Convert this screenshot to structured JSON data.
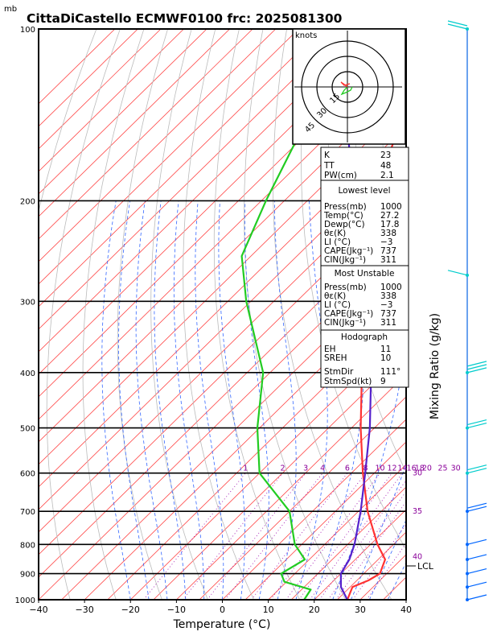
{
  "title": "CittaDiCastello ECMWF0100 frc: 2025081300",
  "pressure_unit": "mb",
  "xlabel": "Temperature (°C)",
  "right_axis_label": "Mixing Ratio (g/kg)",
  "lcl_label": "LCL",
  "hodograph": {
    "unit_label": "knots",
    "ring_labels": [
      "15",
      "30",
      "45"
    ]
  },
  "colors": {
    "temperature": "#ff3333",
    "dewpoint": "#22cc22",
    "parcel": "#5522cc",
    "isotherm": "#ff4444",
    "dry_adiabat": "#bbbbbb",
    "moist_adiabat": "#3366ff",
    "mixing_ratio": "#9900aa",
    "wind_barb_upper": "#00cccc",
    "wind_barb_lower": "#0066ff"
  },
  "indices": {
    "general": [
      {
        "name": "K",
        "value": "23"
      },
      {
        "name": "TT",
        "value": "48"
      },
      {
        "name": "PW(cm)",
        "value": "2.1"
      }
    ],
    "lowest_level": {
      "header": "Lowest level",
      "rows": [
        {
          "name": "Press(mb)",
          "value": "1000"
        },
        {
          "name": "Temp(°C)",
          "value": "27.2"
        },
        {
          "name": "Dewp(°C)",
          "value": "17.8"
        },
        {
          "name": "θε(K)",
          "value": "338"
        },
        {
          "name": "LI (°C)",
          "value": "−3"
        },
        {
          "name": "CAPE(Jkg⁻¹)",
          "value": "737"
        },
        {
          "name": "CIN(Jkg⁻¹)",
          "value": "311"
        }
      ]
    },
    "most_unstable": {
      "header": "Most Unstable",
      "rows": [
        {
          "name": "Press(mb)",
          "value": "1000"
        },
        {
          "name": "θε(K)",
          "value": "338"
        },
        {
          "name": "LI (°C)",
          "value": "−3"
        },
        {
          "name": "CAPE(Jkg⁻¹)",
          "value": "737"
        },
        {
          "name": "CIN(Jkg⁻¹)",
          "value": "311"
        }
      ]
    },
    "hodograph": {
      "header": "Hodograph",
      "rows": [
        {
          "name": "EH",
          "value": "11"
        },
        {
          "name": "SREH",
          "value": "10"
        },
        {
          "name": "StmDir",
          "value": "111°"
        },
        {
          "name": "StmSpd(kt)",
          "value": "9"
        }
      ]
    }
  },
  "chart_data": {
    "type": "line",
    "title": "CittaDiCastello ECMWF0100 frc: 2025081300",
    "xlabel": "Temperature (°C)",
    "ylabel": "mb",
    "y_scale": "log (skew-T)",
    "xlim": [
      -40,
      40
    ],
    "ylim": [
      1000,
      100
    ],
    "x_ticks": [
      "−40",
      "−30",
      "−20",
      "−10",
      "0",
      "10",
      "20",
      "30",
      "40"
    ],
    "pressure_levels": [
      "100",
      "200",
      "300",
      "400",
      "500",
      "600",
      "700",
      "800",
      "900",
      "1000"
    ],
    "mixing_ratio_labels": [
      "1",
      "2",
      "3",
      "4",
      "6",
      "8",
      "10",
      "12",
      "14",
      "16",
      "18",
      "20",
      "25",
      "30"
    ],
    "wet_bulb_labels": [
      "30",
      "35",
      "40"
    ],
    "series": [
      {
        "name": "temperature",
        "points": [
          {
            "p": 1000,
            "t": 27.2
          },
          {
            "p": 950,
            "t": 25.5
          },
          {
            "p": 925,
            "t": 27.5
          },
          {
            "p": 900,
            "t": 28.5
          },
          {
            "p": 850,
            "t": 26.5
          },
          {
            "p": 800,
            "t": 21.5
          },
          {
            "p": 700,
            "t": 12.0
          },
          {
            "p": 600,
            "t": 2.5
          },
          {
            "p": 500,
            "t": -8.0
          },
          {
            "p": 400,
            "t": -20.0
          },
          {
            "p": 300,
            "t": -33.0
          },
          {
            "p": 250,
            "t": -44.0
          },
          {
            "p": 200,
            "t": -56.0
          },
          {
            "p": 150,
            "t": -66.0
          },
          {
            "p": 100,
            "t": -78.0
          }
        ]
      },
      {
        "name": "dewpoint",
        "points": [
          {
            "p": 1000,
            "t": 17.8
          },
          {
            "p": 960,
            "t": 17.0
          },
          {
            "p": 930,
            "t": 9.5
          },
          {
            "p": 900,
            "t": 7.0
          },
          {
            "p": 850,
            "t": 9.0
          },
          {
            "p": 800,
            "t": 3.5
          },
          {
            "p": 700,
            "t": -5.0
          },
          {
            "p": 600,
            "t": -20.0
          },
          {
            "p": 500,
            "t": -30.5
          },
          {
            "p": 400,
            "t": -41.5
          },
          {
            "p": 300,
            "t": -61.0
          },
          {
            "p": 250,
            "t": -72.0
          },
          {
            "p": 200,
            "t": -79.0
          },
          {
            "p": 150,
            "t": -87.0
          },
          {
            "p": 100,
            "t": -98.0
          }
        ]
      },
      {
        "name": "parcel",
        "points": [
          {
            "p": 1000,
            "t": 27.2
          },
          {
            "p": 950,
            "t": 23.0
          },
          {
            "p": 900,
            "t": 20.0
          },
          {
            "p": 850,
            "t": 18.7
          },
          {
            "p": 800,
            "t": 16.5
          },
          {
            "p": 700,
            "t": 10.5
          },
          {
            "p": 600,
            "t": 3.0
          },
          {
            "p": 500,
            "t": -6.0
          },
          {
            "p": 400,
            "t": -18.0
          },
          {
            "p": 300,
            "t": -35.0
          },
          {
            "p": 200,
            "t": -60.0
          },
          {
            "p": 150,
            "t": -77.0
          },
          {
            "p": 120,
            "t": -90.0
          }
        ]
      }
    ],
    "lcl_pressure": 875,
    "grid": true,
    "legend": "none"
  }
}
